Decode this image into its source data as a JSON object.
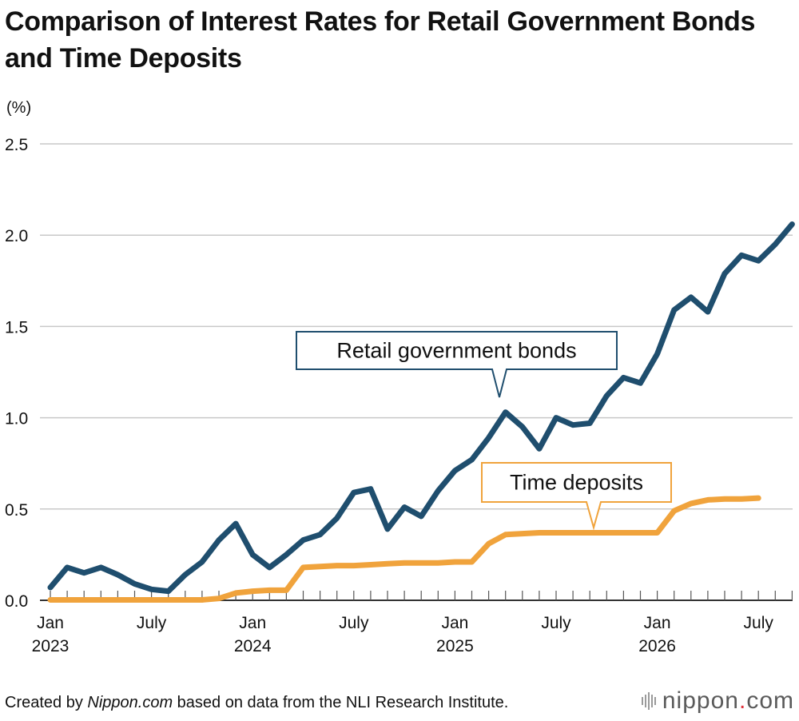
{
  "title": "Comparison of Interest Rates for Retail Government Bonds and Time Deposits",
  "footer": {
    "prefix": "Created by ",
    "brand": "Nippon.com",
    "suffix": " based on data from the NLI Research Institute."
  },
  "logo": {
    "name": "nippon",
    "dot": ".",
    "tld": "com"
  },
  "colors": {
    "bonds": "#1f4e6e",
    "deposits": "#f0a33c",
    "grid": "#c8c8c8",
    "axis": "#333333"
  },
  "chart_data": {
    "type": "line",
    "ylabel": "(%)",
    "ylim": [
      0,
      2.5
    ],
    "yticks": [
      {
        "value": 0,
        "label": "0.0"
      },
      {
        "value": 0.5,
        "label": "0.5"
      },
      {
        "value": 1.0,
        "label": "1.0"
      },
      {
        "value": 1.5,
        "label": "1.5"
      },
      {
        "value": 2.0,
        "label": "2.0"
      },
      {
        "value": 2.5,
        "label": "2.5"
      }
    ],
    "xlim": [
      "2023-01",
      "2026-10"
    ],
    "xticks": [
      {
        "date": "2023-01",
        "label": "Jan",
        "year": "2023"
      },
      {
        "date": "2023-07",
        "label": "July",
        "year": ""
      },
      {
        "date": "2024-01",
        "label": "Jan",
        "year": "2024"
      },
      {
        "date": "2024-07",
        "label": "July",
        "year": ""
      },
      {
        "date": "2025-01",
        "label": "Jan",
        "year": "2025"
      },
      {
        "date": "2025-07",
        "label": "July",
        "year": ""
      },
      {
        "date": "2026-01",
        "label": "Jan",
        "year": "2026"
      },
      {
        "date": "2026-07",
        "label": "July",
        "year": ""
      }
    ],
    "series": [
      {
        "name": "Retail government bonds",
        "color": "#1f4e6e",
        "points": [
          [
            "2023-01",
            0.07
          ],
          [
            "2023-02",
            0.18
          ],
          [
            "2023-03",
            0.15
          ],
          [
            "2023-04",
            0.18
          ],
          [
            "2023-05",
            0.14
          ],
          [
            "2023-06",
            0.09
          ],
          [
            "2023-07",
            0.06
          ],
          [
            "2023-08",
            0.05
          ],
          [
            "2023-09",
            0.14
          ],
          [
            "2023-10",
            0.21
          ],
          [
            "2023-11",
            0.33
          ],
          [
            "2023-12",
            0.42
          ],
          [
            "2024-01",
            0.25
          ],
          [
            "2024-02",
            0.18
          ],
          [
            "2024-03",
            0.25
          ],
          [
            "2024-04",
            0.33
          ],
          [
            "2024-05",
            0.36
          ],
          [
            "2024-06",
            0.45
          ],
          [
            "2024-07",
            0.59
          ],
          [
            "2024-08",
            0.61
          ],
          [
            "2024-09",
            0.39
          ],
          [
            "2024-10",
            0.51
          ],
          [
            "2024-11",
            0.46
          ],
          [
            "2024-12",
            0.6
          ],
          [
            "2025-01",
            0.71
          ],
          [
            "2025-02",
            0.77
          ],
          [
            "2025-03",
            0.89
          ],
          [
            "2025-04",
            1.03
          ],
          [
            "2025-05",
            0.95
          ],
          [
            "2025-06",
            0.83
          ],
          [
            "2025-07",
            1.0
          ],
          [
            "2025-08",
            0.96
          ],
          [
            "2025-09",
            0.97
          ],
          [
            "2025-10",
            1.12
          ],
          [
            "2025-11",
            1.22
          ],
          [
            "2025-12",
            1.19
          ],
          [
            "2026-01",
            1.35
          ],
          [
            "2026-02",
            1.59
          ],
          [
            "2026-03",
            1.66
          ],
          [
            "2026-04",
            1.58
          ],
          [
            "2026-05",
            1.79
          ],
          [
            "2026-06",
            1.89
          ],
          [
            "2026-07",
            1.86
          ],
          [
            "2026-08",
            1.95
          ],
          [
            "2026-09",
            2.06
          ]
        ]
      },
      {
        "name": "Time deposits",
        "color": "#f0a33c",
        "points": [
          [
            "2023-01",
            0.002
          ],
          [
            "2023-02",
            0.002
          ],
          [
            "2023-03",
            0.002
          ],
          [
            "2023-04",
            0.002
          ],
          [
            "2023-05",
            0.002
          ],
          [
            "2023-06",
            0.002
          ],
          [
            "2023-07",
            0.002
          ],
          [
            "2023-08",
            0.002
          ],
          [
            "2023-09",
            0.002
          ],
          [
            "2023-10",
            0.002
          ],
          [
            "2023-11",
            0.01
          ],
          [
            "2023-12",
            0.04
          ],
          [
            "2024-01",
            0.05
          ],
          [
            "2024-02",
            0.055
          ],
          [
            "2024-03",
            0.055
          ],
          [
            "2024-04",
            0.18
          ],
          [
            "2024-05",
            0.185
          ],
          [
            "2024-06",
            0.19
          ],
          [
            "2024-07",
            0.19
          ],
          [
            "2024-08",
            0.195
          ],
          [
            "2024-09",
            0.2
          ],
          [
            "2024-10",
            0.205
          ],
          [
            "2024-11",
            0.205
          ],
          [
            "2024-12",
            0.205
          ],
          [
            "2025-01",
            0.21
          ],
          [
            "2025-02",
            0.21
          ],
          [
            "2025-03",
            0.31
          ],
          [
            "2025-04",
            0.36
          ],
          [
            "2025-05",
            0.365
          ],
          [
            "2025-06",
            0.37
          ],
          [
            "2025-07",
            0.37
          ],
          [
            "2025-08",
            0.37
          ],
          [
            "2025-09",
            0.37
          ],
          [
            "2025-10",
            0.37
          ],
          [
            "2025-11",
            0.37
          ],
          [
            "2025-12",
            0.37
          ],
          [
            "2026-01",
            0.37
          ],
          [
            "2026-02",
            0.49
          ],
          [
            "2026-03",
            0.53
          ],
          [
            "2026-04",
            0.55
          ],
          [
            "2026-05",
            0.555
          ],
          [
            "2026-06",
            0.555
          ],
          [
            "2026-07",
            0.56
          ]
        ]
      }
    ],
    "annotations": [
      {
        "series": 0,
        "text": "Retail government bonds",
        "anchor": "2025-04"
      },
      {
        "series": 1,
        "text": "Time deposits",
        "anchor": "2025-10"
      }
    ],
    "grid": true,
    "legend": "none"
  }
}
